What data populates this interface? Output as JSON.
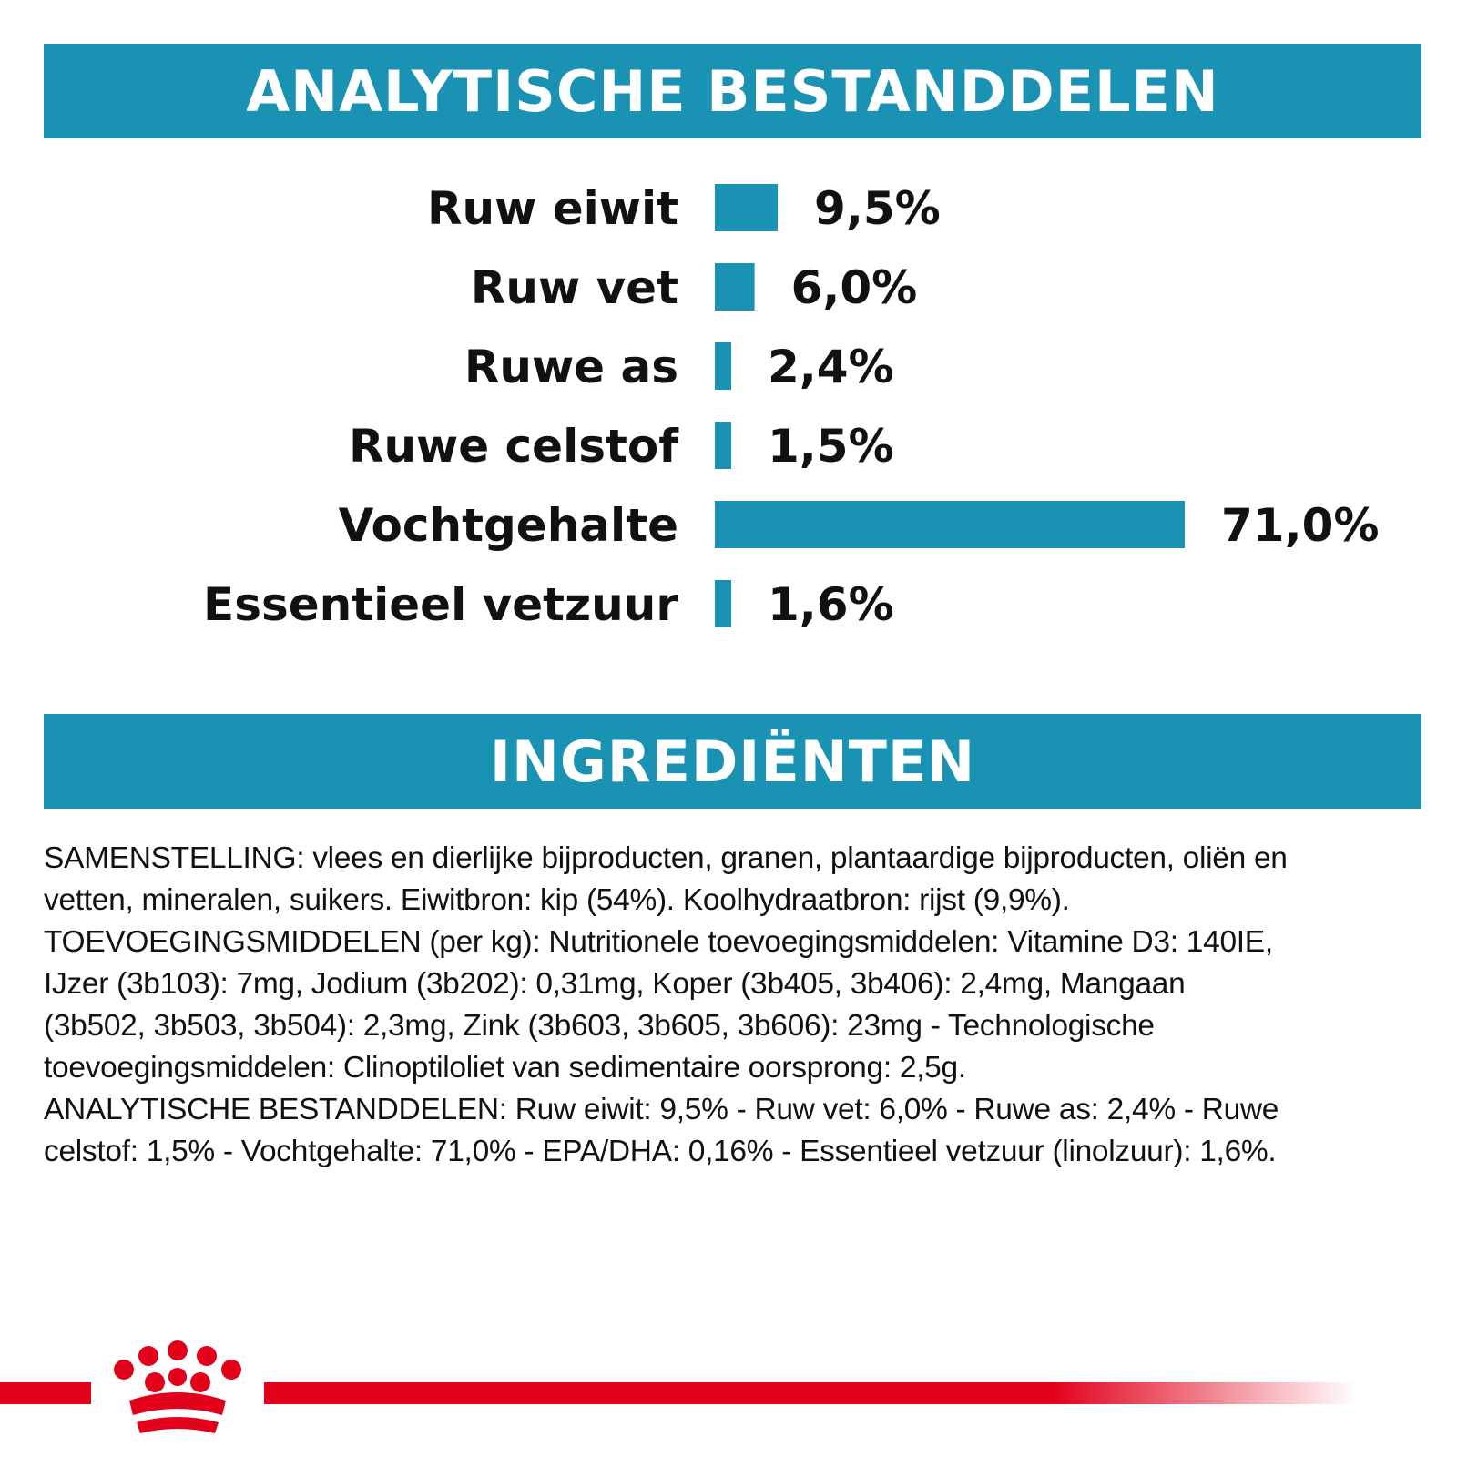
{
  "header": {
    "title": "ANALYTISCHE BESTANDDELEN"
  },
  "ingredients_header": {
    "title": "INGREDIËNTEN"
  },
  "chart_data": {
    "type": "bar",
    "orientation": "horizontal",
    "categories": [
      "Ruw eiwit",
      "Ruw vet",
      "Ruwe as",
      "Ruwe celstof",
      "Vochtgehalte",
      "Essentieel vetzuur"
    ],
    "values": [
      9.5,
      6.0,
      2.4,
      1.5,
      71.0,
      1.6
    ],
    "value_labels": [
      "9,5%",
      "6,0%",
      "2,4%",
      "1,5%",
      "71,0%",
      "1,6%"
    ],
    "unit": "%",
    "bar_color": "#1a92b3",
    "grid": false
  },
  "ingredients_text": [
    "SAMENSTELLING: vlees en dierlijke bijproducten, granen, plantaardige bijproducten, oliën en",
    "vetten, mineralen, suikers. Eiwitbron: kip (54%). Koolhydraatbron: rijst (9,9%).",
    "TOEVOEGINGSMIDDELEN (per kg): Nutritionele toevoegingsmiddelen: Vitamine D3: 140IE,",
    "IJzer (3b103): 7mg, Jodium (3b202): 0,31mg, Koper (3b405, 3b406): 2,4mg, Mangaan",
    "(3b502, 3b503, 3b504): 2,3mg, Zink (3b603, 3b605, 3b606): 23mg - Technologische",
    "toevoegingsmiddelen: Clinoptiloliet van sedimentaire oorsprong: 2,5g.",
    "ANALYTISCHE BESTANDDELEN: Ruw eiwit: 9,5% - Ruw vet: 6,0% - Ruwe as: 2,4% - Ruwe",
    "celstof: 1,5% - Vochtgehalte: 71,0% - EPA/DHA: 0,16% - Essentieel vetzuur (linolzuur): 1,6%."
  ],
  "colors": {
    "accent": "#1a92b3",
    "brand_red": "#e2001a"
  },
  "logo": {
    "icon": "crown-logo-icon"
  }
}
